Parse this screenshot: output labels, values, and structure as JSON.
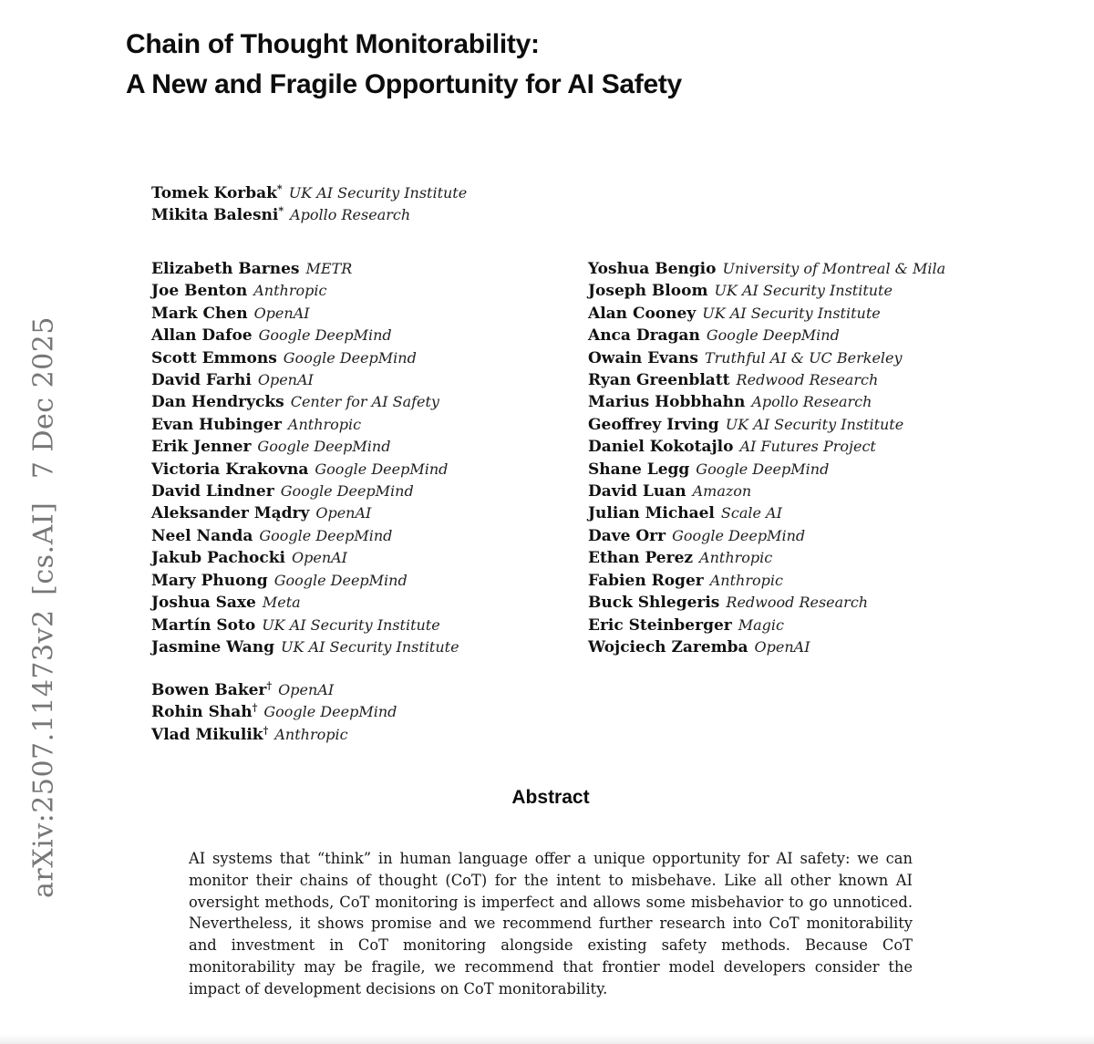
{
  "arxiv_label": "arXiv:2507.11473v2 [cs.AI]  7 Dec 2025",
  "title": {
    "line1": "Chain of Thought Monitorability:",
    "line2": "A New and Fragile Opportunity for AI Safety"
  },
  "lead_authors": [
    {
      "name": "Tomek Korbak",
      "marker": "*",
      "affiliation": "UK AI Security Institute"
    },
    {
      "name": "Mikita Balesni",
      "marker": "*",
      "affiliation": "Apollo Research"
    }
  ],
  "authors_left": [
    {
      "name": "Elizabeth Barnes",
      "affiliation": "METR"
    },
    {
      "name": "Joe Benton",
      "affiliation": "Anthropic"
    },
    {
      "name": "Mark Chen",
      "affiliation": "OpenAI"
    },
    {
      "name": "Allan Dafoe",
      "affiliation": "Google DeepMind"
    },
    {
      "name": "Scott Emmons",
      "affiliation": "Google DeepMind"
    },
    {
      "name": "David Farhi",
      "affiliation": "OpenAI"
    },
    {
      "name": "Dan Hendrycks",
      "affiliation": "Center for AI Safety"
    },
    {
      "name": "Evan Hubinger",
      "affiliation": "Anthropic"
    },
    {
      "name": "Erik Jenner",
      "affiliation": "Google DeepMind"
    },
    {
      "name": "Victoria Krakovna",
      "affiliation": "Google DeepMind"
    },
    {
      "name": "David Lindner",
      "affiliation": "Google DeepMind"
    },
    {
      "name": "Aleksander Mądry",
      "affiliation": "OpenAI"
    },
    {
      "name": "Neel Nanda",
      "affiliation": "Google DeepMind"
    },
    {
      "name": "Jakub Pachocki",
      "affiliation": "OpenAI"
    },
    {
      "name": "Mary Phuong",
      "affiliation": "Google DeepMind"
    },
    {
      "name": "Joshua Saxe",
      "affiliation": "Meta"
    },
    {
      "name": "Martín Soto",
      "affiliation": "UK AI Security Institute"
    },
    {
      "name": "Jasmine Wang",
      "affiliation": "UK AI Security Institute"
    }
  ],
  "authors_right": [
    {
      "name": "Yoshua Bengio",
      "affiliation": "University of Montreal & Mila"
    },
    {
      "name": "Joseph Bloom",
      "affiliation": "UK AI Security Institute"
    },
    {
      "name": "Alan Cooney",
      "affiliation": "UK AI Security Institute"
    },
    {
      "name": "Anca Dragan",
      "affiliation": "Google DeepMind"
    },
    {
      "name": "Owain Evans",
      "affiliation": "Truthful AI & UC Berkeley"
    },
    {
      "name": "Ryan Greenblatt",
      "affiliation": "Redwood Research"
    },
    {
      "name": "Marius Hobbhahn",
      "affiliation": "Apollo Research"
    },
    {
      "name": "Geoffrey Irving",
      "affiliation": "UK AI Security Institute"
    },
    {
      "name": "Daniel Kokotajlo",
      "affiliation": "AI Futures Project"
    },
    {
      "name": "Shane Legg",
      "affiliation": "Google DeepMind"
    },
    {
      "name": "David Luan",
      "affiliation": "Amazon"
    },
    {
      "name": "Julian Michael",
      "affiliation": "Scale AI"
    },
    {
      "name": "Dave Orr",
      "affiliation": "Google DeepMind"
    },
    {
      "name": "Ethan Perez",
      "affiliation": "Anthropic"
    },
    {
      "name": "Fabien Roger",
      "affiliation": "Anthropic"
    },
    {
      "name": "Buck Shlegeris",
      "affiliation": "Redwood Research"
    },
    {
      "name": "Eric Steinberger",
      "affiliation": "Magic"
    },
    {
      "name": "Wojciech Zaremba",
      "affiliation": "OpenAI"
    }
  ],
  "senior_authors": [
    {
      "name": "Bowen Baker",
      "marker": "†",
      "affiliation": "OpenAI"
    },
    {
      "name": "Rohin Shah",
      "marker": "†",
      "affiliation": "Google DeepMind"
    },
    {
      "name": "Vlad Mikulik",
      "marker": "†",
      "affiliation": "Anthropic"
    }
  ],
  "abstract": {
    "heading": "Abstract",
    "text": "AI systems that “think” in human language offer a unique opportunity for AI safety: we can monitor their chains of thought (CoT) for the intent to misbehave. Like all other known AI oversight methods, CoT monitoring is imperfect and allows some misbehavior to go unnoticed. Nevertheless, it shows promise and we recommend further research into CoT monitorability and investment in CoT monitoring alongside existing safety methods. Because CoT monitorability may be fragile, we recommend that frontier model developers consider the impact of development decisions on CoT monitorability."
  }
}
